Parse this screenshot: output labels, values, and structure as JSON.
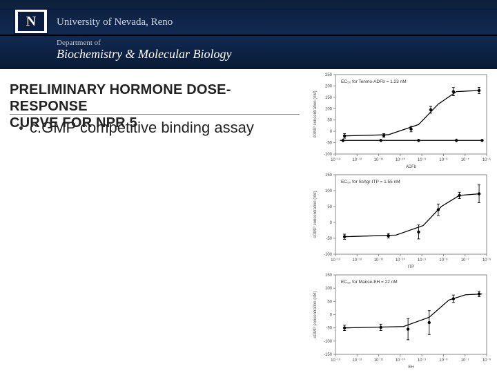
{
  "header": {
    "logo_letter": "N",
    "university": "University of Nevada, Reno",
    "dept_label": "Department of",
    "dept_name": "Biochemistry & Molecular Biology",
    "band_gradient": [
      "#0d1f3a",
      "#112a52",
      "#0a1a35"
    ],
    "logo_bg": "#ffffff",
    "logo_inner_bg": "#0a1c40"
  },
  "title": {
    "line1": "PRELIMINARY HORMONE DOSE-RESPONSE",
    "line2": "CURVE FOR NPR 5",
    "underline_color": "#7aa832"
  },
  "bullet": {
    "text": "c.GMP competitive binding assay"
  },
  "charts": {
    "axis_color": "#888888",
    "curve_color": "#000000",
    "point_color": "#000000",
    "xlog_ticks": [
      "10⁻¹³",
      "10⁻¹²",
      "10⁻¹¹",
      "10⁻¹⁰",
      "10⁻⁹",
      "10⁻⁸",
      "10⁻⁷",
      "10⁻⁶"
    ],
    "ylabel": "cGMP concentration (nM)",
    "panels": [
      {
        "ec_label": "EC₅₀ for Tenmo-ADFb = 1.23 nM",
        "xaxis_label": "ADFb",
        "ylim": [
          -100,
          250
        ],
        "yticks": [
          -100,
          -50,
          0,
          50,
          100,
          150,
          200,
          250
        ],
        "curve_points": [
          {
            "x": 0.06,
            "y": -20
          },
          {
            "x": 0.35,
            "y": -15
          },
          {
            "x": 0.55,
            "y": 30
          },
          {
            "x": 0.68,
            "y": 120
          },
          {
            "x": 0.8,
            "y": 175
          },
          {
            "x": 0.95,
            "y": 180
          }
        ],
        "data_points": [
          {
            "x": 0.06,
            "y": -20,
            "err": 10
          },
          {
            "x": 0.32,
            "y": -18,
            "err": 8
          },
          {
            "x": 0.5,
            "y": 10,
            "err": 12
          },
          {
            "x": 0.63,
            "y": 95,
            "err": 15
          },
          {
            "x": 0.78,
            "y": 175,
            "err": 18
          },
          {
            "x": 0.95,
            "y": 180,
            "err": 14
          }
        ],
        "flat_line": {
          "y": -40,
          "points": [
            {
              "x": 0.05,
              "err": 8
            },
            {
              "x": 0.3,
              "err": 6
            },
            {
              "x": 0.55,
              "err": 7
            },
            {
              "x": 0.8,
              "err": 8
            },
            {
              "x": 0.97,
              "err": 6
            }
          ]
        }
      },
      {
        "ec_label": "EC₅₀ for Schgr-ITP = 1.55 nM",
        "xaxis_label": "ITP",
        "ylim": [
          -100,
          150
        ],
        "yticks": [
          -100,
          -50,
          0,
          50,
          100,
          150
        ],
        "curve_points": [
          {
            "x": 0.06,
            "y": -45
          },
          {
            "x": 0.4,
            "y": -40
          },
          {
            "x": 0.58,
            "y": -10
          },
          {
            "x": 0.7,
            "y": 50
          },
          {
            "x": 0.82,
            "y": 85
          },
          {
            "x": 0.95,
            "y": 90
          }
        ],
        "data_points": [
          {
            "x": 0.06,
            "y": -45,
            "err": 8
          },
          {
            "x": 0.35,
            "y": -42,
            "err": 7
          },
          {
            "x": 0.55,
            "y": -30,
            "err": 22
          },
          {
            "x": 0.68,
            "y": 40,
            "err": 18
          },
          {
            "x": 0.82,
            "y": 85,
            "err": 10
          },
          {
            "x": 0.95,
            "y": 90,
            "err": 28
          }
        ],
        "flat_line": null
      },
      {
        "ec_label": "EC₅₀ for Manse-EH = 22 nM",
        "xaxis_label": "EH",
        "ylim": [
          -150,
          150
        ],
        "yticks": [
          -150,
          -100,
          -50,
          0,
          50,
          100,
          150
        ],
        "curve_points": [
          {
            "x": 0.06,
            "y": -50
          },
          {
            "x": 0.45,
            "y": -45
          },
          {
            "x": 0.62,
            "y": -10
          },
          {
            "x": 0.75,
            "y": 55
          },
          {
            "x": 0.86,
            "y": 75
          },
          {
            "x": 0.97,
            "y": 78
          }
        ],
        "data_points": [
          {
            "x": 0.06,
            "y": -50,
            "err": 10
          },
          {
            "x": 0.3,
            "y": -48,
            "err": 12
          },
          {
            "x": 0.48,
            "y": -55,
            "err": 40
          },
          {
            "x": 0.62,
            "y": -30,
            "err": 45
          },
          {
            "x": 0.78,
            "y": 60,
            "err": 14
          },
          {
            "x": 0.95,
            "y": 78,
            "err": 10
          }
        ],
        "flat_line": null
      }
    ]
  }
}
